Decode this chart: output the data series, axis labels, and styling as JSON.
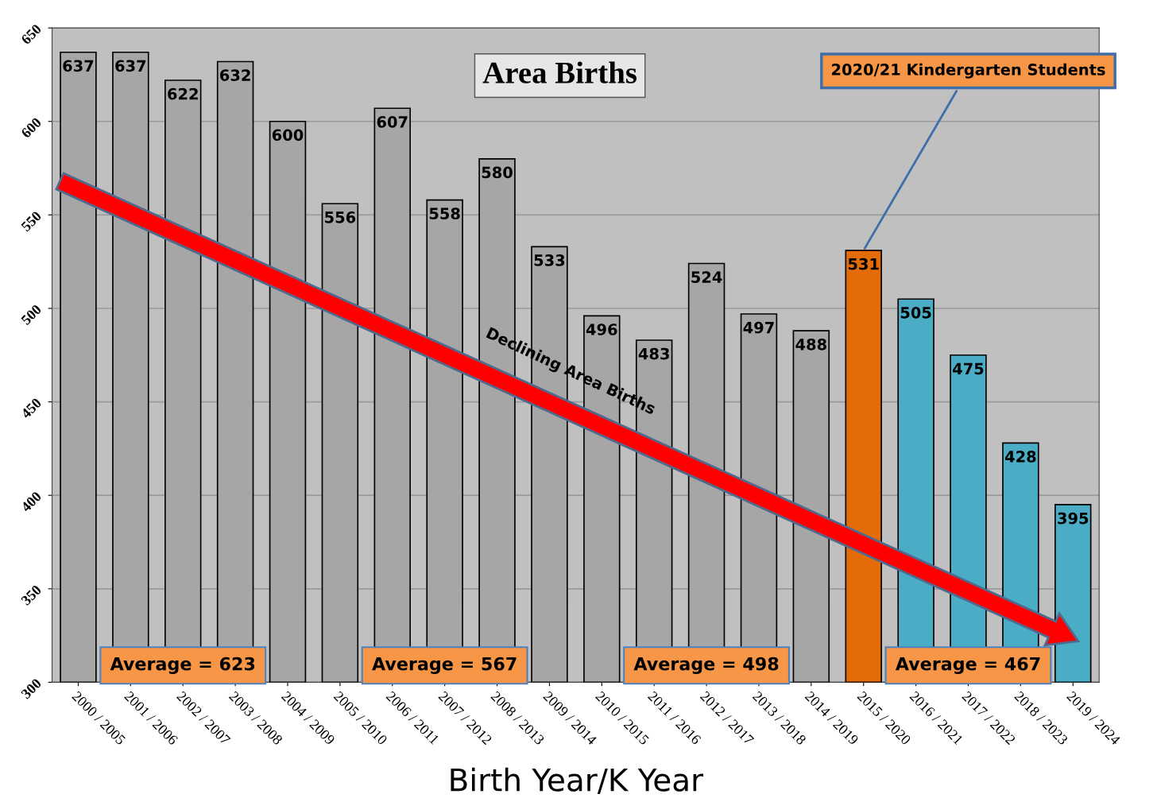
{
  "chart_data": {
    "type": "bar",
    "title": "Area Births",
    "xlabel": "Birth Year/K Year",
    "categories": [
      "2000 / 2005",
      "2001 / 2006",
      "2002 / 2007",
      "2003 / 2008",
      "2004 / 2009",
      "2005 / 2010",
      "2006 / 2011",
      "2007 / 2012",
      "2008 / 2013",
      "2009 / 2014",
      "2010 / 2015",
      "2011 / 2016",
      "2012 / 2017",
      "2013 / 2018",
      "2014 / 2019",
      "2015 / 2020",
      "2016 / 2021",
      "2017 / 2022",
      "2018 / 2023",
      "2019 / 2024"
    ],
    "values": [
      637,
      637,
      622,
      632,
      600,
      556,
      607,
      558,
      580,
      533,
      496,
      483,
      524,
      497,
      488,
      531,
      505,
      475,
      428,
      395
    ],
    "colors": [
      "#a6a6a6",
      "#a6a6a6",
      "#a6a6a6",
      "#a6a6a6",
      "#a6a6a6",
      "#a6a6a6",
      "#a6a6a6",
      "#a6a6a6",
      "#a6a6a6",
      "#a6a6a6",
      "#a6a6a6",
      "#a6a6a6",
      "#a6a6a6",
      "#a6a6a6",
      "#a6a6a6",
      "#e36c09",
      "#4bacc6",
      "#4bacc6",
      "#4bacc6",
      "#4bacc6"
    ],
    "ylim": [
      300,
      650
    ],
    "yticks": [
      300,
      350,
      400,
      450,
      500,
      550,
      600,
      650
    ],
    "grid": "y",
    "data_labels": true,
    "annotations": [
      "Average = 623",
      "Average = 567",
      "Average = 498",
      "Average = 467",
      "Declining Area Births",
      {
        "text": "2020/21 Kindergarten Students",
        "x": "2015 / 2020",
        "y": 531
      }
    ]
  }
}
